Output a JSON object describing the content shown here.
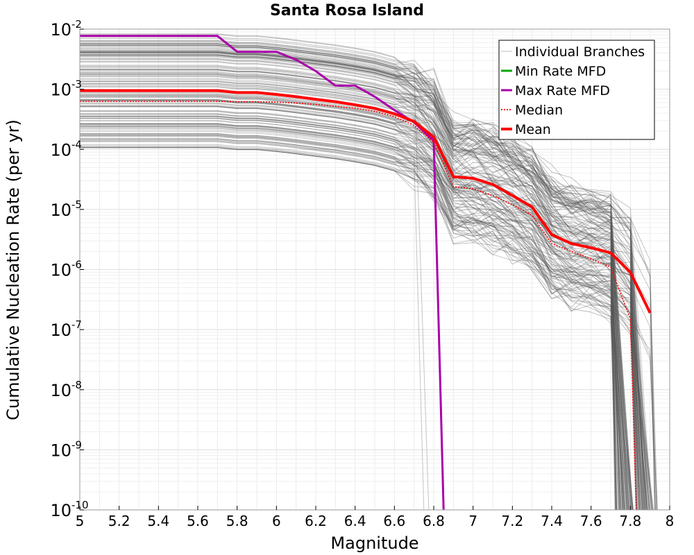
{
  "chart_data": {
    "type": "line",
    "title": "Santa Rosa Island",
    "xlabel": "Magnitude",
    "ylabel": "Cumulative Nucleation Rate (per yr)",
    "xlim": [
      5,
      8
    ],
    "ylim": [
      1e-10,
      0.01
    ],
    "yscale": "log",
    "grid": true,
    "legend_position": "top-right",
    "x_ticks": [
      "5",
      "5.2",
      "5.4",
      "5.6",
      "5.8",
      "6",
      "6.2",
      "6.4",
      "6.6",
      "6.8",
      "7",
      "7.2",
      "7.4",
      "7.6",
      "7.8",
      "8"
    ],
    "y_ticks": [
      {
        "base": "10",
        "exp": "-10",
        "value": 1e-10
      },
      {
        "base": "10",
        "exp": "-9",
        "value": 1e-09
      },
      {
        "base": "10",
        "exp": "-8",
        "value": 1e-08
      },
      {
        "base": "10",
        "exp": "-7",
        "value": 1e-07
      },
      {
        "base": "10",
        "exp": "-6",
        "value": 1e-06
      },
      {
        "base": "10",
        "exp": "-5",
        "value": 1e-05
      },
      {
        "base": "10",
        "exp": "-4",
        "value": 0.0001
      },
      {
        "base": "10",
        "exp": "-3",
        "value": 0.001
      },
      {
        "base": "10",
        "exp": "-2",
        "value": 0.01
      }
    ],
    "legend": [
      {
        "label": "Individual Branches",
        "color": "#bbbbbb",
        "style": "thin"
      },
      {
        "label": "Min Rate MFD",
        "color": "#00aa00",
        "style": "solid"
      },
      {
        "label": "Max Rate MFD",
        "color": "#aa00aa",
        "style": "solid"
      },
      {
        "label": "Median",
        "color": "#ff0000",
        "style": "dotted"
      },
      {
        "label": "Mean",
        "color": "#ff0000",
        "style": "thick"
      }
    ],
    "series": [
      {
        "name": "Max Rate MFD",
        "color": "#aa00aa",
        "x": [
          5.0,
          5.1,
          5.2,
          5.3,
          5.4,
          5.5,
          5.6,
          5.7,
          5.8,
          5.9,
          6.0,
          6.1,
          6.2,
          6.3,
          6.4,
          6.5,
          6.6,
          6.7,
          6.8,
          6.85
        ],
        "y": [
          0.0077,
          0.0077,
          0.0077,
          0.0077,
          0.0077,
          0.0077,
          0.0077,
          0.0077,
          0.0042,
          0.0042,
          0.0042,
          0.0031,
          0.002,
          0.00115,
          0.00115,
          0.00075,
          0.00045,
          0.00028,
          0.00014,
          1e-10
        ]
      },
      {
        "name": "Mean",
        "color": "#ff0000",
        "x": [
          5.0,
          5.1,
          5.2,
          5.3,
          5.4,
          5.5,
          5.6,
          5.7,
          5.8,
          5.9,
          6.0,
          6.1,
          6.2,
          6.3,
          6.4,
          6.5,
          6.6,
          6.7,
          6.8,
          6.9,
          7.0,
          7.1,
          7.2,
          7.3,
          7.4,
          7.5,
          7.6,
          7.7,
          7.8,
          7.9
        ],
        "y": [
          0.00095,
          0.00095,
          0.00095,
          0.00095,
          0.00095,
          0.00095,
          0.00095,
          0.00095,
          0.00088,
          0.00088,
          0.00082,
          0.00075,
          0.00068,
          0.00062,
          0.00055,
          0.00048,
          0.00039,
          0.00029,
          0.00016,
          3.5e-05,
          3.3e-05,
          2.6e-05,
          1.7e-05,
          1.1e-05,
          3.8e-06,
          2.7e-06,
          2.3e-06,
          1.9e-06,
          9e-07,
          1.9e-07
        ]
      },
      {
        "name": "Median",
        "color": "#ff0000",
        "x": [
          5.0,
          5.1,
          5.2,
          5.3,
          5.4,
          5.5,
          5.6,
          5.7,
          5.8,
          5.9,
          6.0,
          6.1,
          6.2,
          6.3,
          6.4,
          6.5,
          6.6,
          6.7,
          6.8,
          6.9,
          7.0,
          7.1,
          7.2,
          7.3,
          7.4,
          7.5,
          7.6,
          7.7,
          7.8,
          7.83
        ],
        "y": [
          0.00063,
          0.00063,
          0.00063,
          0.00063,
          0.00063,
          0.00063,
          0.00063,
          0.00063,
          0.00062,
          0.00062,
          0.00061,
          0.00059,
          0.00056,
          0.00052,
          0.00048,
          0.00043,
          0.00035,
          0.00025,
          0.00013,
          2.4e-05,
          2.2e-05,
          1.7e-05,
          1.2e-05,
          8e-06,
          2.7e-06,
          2e-06,
          1.5e-06,
          1.1e-06,
          1.5e-07,
          1e-10
        ]
      }
    ]
  }
}
